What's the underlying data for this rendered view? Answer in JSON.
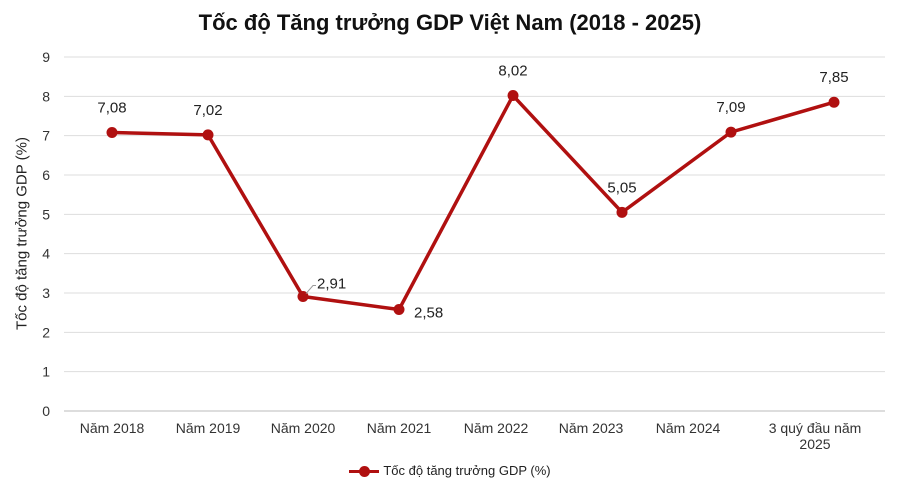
{
  "chart_data": {
    "type": "line",
    "title": "Tốc độ Tăng trưởng GDP Việt Nam (2018 - 2025)",
    "xlabel": "",
    "ylabel": "Tốc độ tăng trưởng GDP (%)",
    "categories": [
      "Năm 2018",
      "Năm 2019",
      "Năm 2020",
      "Năm 2021",
      "Năm 2022",
      "Năm 2023",
      "Năm 2024",
      "3 quý đầu năm 2025"
    ],
    "series": [
      {
        "name": "Tốc độ tăng trưởng GDP (%)",
        "values": [
          7.08,
          7.02,
          2.91,
          2.58,
          8.02,
          5.05,
          7.09,
          7.85
        ],
        "labels": [
          "7,08",
          "7,02",
          "2,91",
          "2,58",
          "8,02",
          "5,05",
          "7,09",
          "7,85"
        ],
        "color": "#b01010"
      }
    ],
    "ylim": [
      0,
      9
    ],
    "yticks": [
      0,
      1,
      2,
      3,
      4,
      5,
      6,
      7,
      8,
      9
    ],
    "grid": true,
    "legend": "bottom"
  }
}
